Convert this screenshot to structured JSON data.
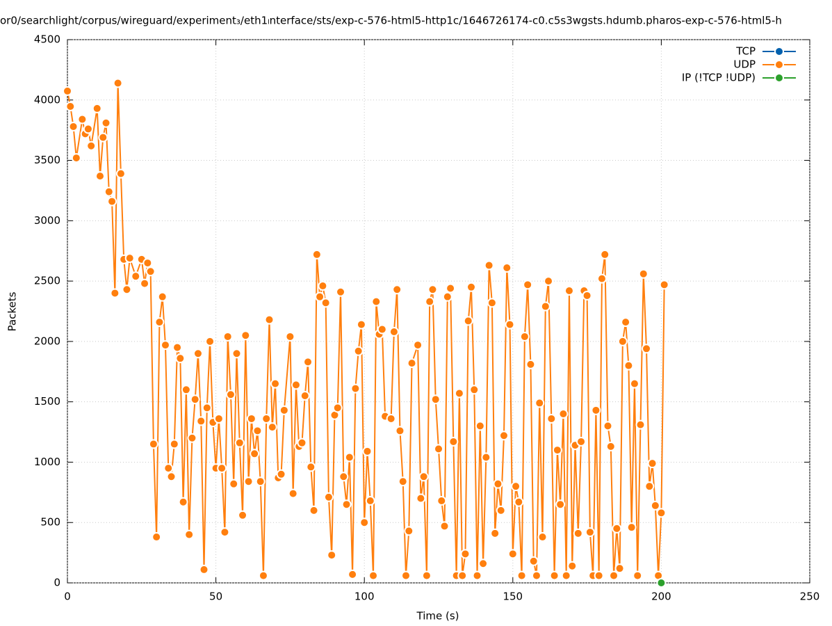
{
  "chart_data": {
    "type": "line",
    "title": "or0/searchlight/corpus/wireguard/experiment₃/eth1ₗnterface/sts/exp-c-576-html5-http1c/1646726174-c0.c5s3wgsts.hdumb.pharos-exp-c-576-html5-h",
    "x_label": "Time (s)",
    "y_label": "Packets",
    "xlim": [
      0,
      250
    ],
    "xticks": [
      0,
      50,
      100,
      150,
      200,
      250
    ],
    "ylim": [
      0,
      4500
    ],
    "yticks": [
      0,
      500,
      1000,
      1500,
      2000,
      2500,
      3000,
      3500,
      4000,
      4500
    ],
    "grid": true,
    "legend": "top-right",
    "series": [
      {
        "name": "TCP",
        "color": "#0060ad",
        "x": [],
        "values": []
      },
      {
        "name": "UDP",
        "color": "#ff7f0e",
        "x": [
          0,
          1,
          2,
          3,
          5,
          6,
          7,
          8,
          10,
          11,
          12,
          13,
          14,
          15,
          16,
          17,
          18,
          19,
          20,
          21,
          23,
          25,
          26,
          27,
          28,
          29,
          30,
          31,
          32,
          33,
          34,
          35,
          36,
          37,
          38,
          39,
          40,
          41,
          42,
          43,
          44,
          45,
          46,
          47,
          48,
          49,
          50,
          51,
          52,
          53,
          54,
          55,
          56,
          57,
          58,
          59,
          60,
          61,
          62,
          63,
          64,
          65,
          66,
          67,
          68,
          69,
          70,
          71,
          72,
          73,
          75,
          76,
          77,
          78,
          79,
          80,
          81,
          82,
          83,
          84,
          85,
          86,
          87,
          88,
          89,
          90,
          91,
          92,
          93,
          94,
          95,
          96,
          97,
          98,
          99,
          100,
          101,
          102,
          103,
          104,
          105,
          106,
          107,
          109,
          110,
          111,
          112,
          113,
          114,
          115,
          116,
          118,
          119,
          120,
          121,
          122,
          123,
          124,
          125,
          126,
          127,
          128,
          129,
          130,
          131,
          132,
          133,
          134,
          135,
          136,
          137,
          138,
          139,
          140,
          141,
          142,
          143,
          144,
          145,
          146,
          147,
          148,
          149,
          150,
          151,
          152,
          153,
          154,
          155,
          156,
          157,
          158,
          159,
          160,
          161,
          162,
          163,
          164,
          165,
          166,
          167,
          168,
          169,
          170,
          171,
          172,
          173,
          174,
          175,
          176,
          177,
          178,
          179,
          180,
          181,
          182,
          183,
          184,
          185,
          186,
          187,
          188,
          189,
          190,
          191,
          192,
          193,
          194,
          195,
          196,
          197,
          198,
          199,
          200,
          201
        ],
        "values": [
          4074,
          3947,
          3780,
          3520,
          3840,
          3720,
          3760,
          3620,
          3930,
          3370,
          3690,
          3810,
          3240,
          3160,
          2400,
          4140,
          3390,
          2680,
          2430,
          2690,
          2540,
          2680,
          2480,
          2650,
          2580,
          1150,
          380,
          2160,
          2370,
          1970,
          950,
          880,
          1150,
          1950,
          1860,
          670,
          1600,
          400,
          1200,
          1520,
          1900,
          1340,
          110,
          1450,
          2000,
          1330,
          950,
          1360,
          950,
          420,
          2040,
          1560,
          820,
          1900,
          1160,
          560,
          2050,
          840,
          1360,
          1070,
          1260,
          840,
          60,
          1360,
          2180,
          1290,
          1650,
          870,
          900,
          1430,
          2040,
          740,
          1640,
          1130,
          1160,
          1550,
          1830,
          960,
          600,
          2720,
          2370,
          2460,
          2320,
          710,
          230,
          1390,
          1450,
          2410,
          880,
          650,
          1040,
          70,
          1610,
          1920,
          2140,
          500,
          1090,
          680,
          60,
          2330,
          2060,
          2100,
          1380,
          1360,
          2080,
          2430,
          1260,
          840,
          60,
          430,
          1820,
          1970,
          700,
          880,
          60,
          2330,
          2430,
          1520,
          1110,
          680,
          470,
          2370,
          2440,
          1170,
          60,
          1570,
          60,
          240,
          2170,
          2450,
          1600,
          60,
          1300,
          160,
          1040,
          2630,
          2320,
          410,
          820,
          600,
          1220,
          2610,
          2140,
          240,
          800,
          670,
          60,
          2040,
          2470,
          1810,
          180,
          60,
          1490,
          380,
          2290,
          2500,
          1360,
          60,
          1100,
          650,
          1400,
          60,
          2420,
          140,
          1140,
          410,
          1170,
          2420,
          2380,
          420,
          60,
          1430,
          60,
          2520,
          2720,
          1300,
          1130,
          60,
          450,
          120,
          2000,
          2160,
          1800,
          460,
          1650,
          60,
          1310,
          2560,
          1940,
          800,
          990,
          640,
          60,
          580,
          2470
        ]
      },
      {
        "name": "IP (!TCP  !UDP)",
        "color": "#2ca02c",
        "x": [
          200
        ],
        "values": [
          0
        ]
      }
    ]
  }
}
